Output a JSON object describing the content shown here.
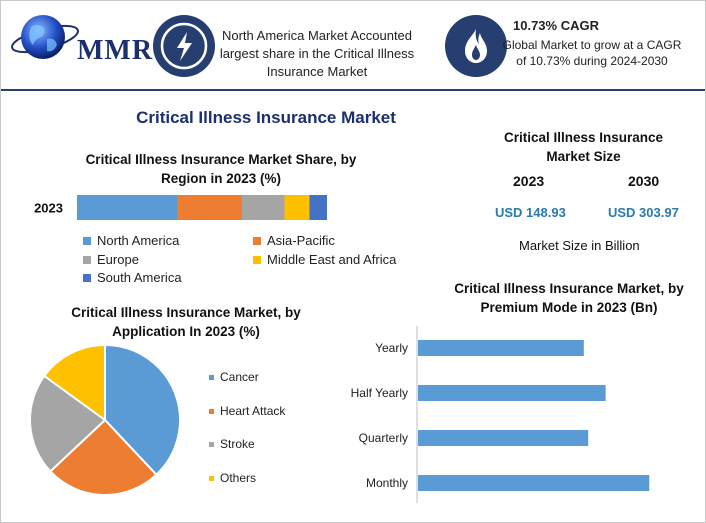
{
  "header": {
    "logo_text": "MMR",
    "headline": "North America Market Accounted largest share in the Critical Illness Insurance Market",
    "cagr_title": "10.73% CAGR",
    "cagr_text": "Global Market to grow at a CAGR of 10.73% during 2024-2030",
    "icons": [
      "globe-icon",
      "lightning-icon",
      "flame-icon"
    ]
  },
  "main_title": "Critical Illness Insurance Market",
  "market_size": {
    "title": "Critical Illness Insurance Market Size",
    "year_start": "2023",
    "year_end": "2030",
    "value_start": "USD 148.93",
    "value_end": "USD 303.97",
    "unit_note": "Market Size in Billion"
  },
  "colors": {
    "navy": "#263f70",
    "blue": "#5b9bd5",
    "orange": "#ed7d31",
    "gray": "#a5a5a5",
    "yellow": "#ffc000",
    "darkblue": "#4472c4",
    "value_blue": "#2a7ab0"
  },
  "chart_data": [
    {
      "type": "bar",
      "orientation": "horizontal-stacked",
      "title": "Critical Illness Insurance Market Share, by Region in 2023 (%)",
      "categories": [
        "2023"
      ],
      "series": [
        {
          "name": "North America",
          "values": [
            40
          ],
          "color": "#5b9bd5"
        },
        {
          "name": "Asia-Pacific",
          "values": [
            26
          ],
          "color": "#ed7d31"
        },
        {
          "name": "Europe",
          "values": [
            17
          ],
          "color": "#a5a5a5"
        },
        {
          "name": "Middle East and Africa",
          "values": [
            10
          ],
          "color": "#ffc000"
        },
        {
          "name": "South America",
          "values": [
            7
          ],
          "color": "#4472c4"
        }
      ],
      "legend": "bottom"
    },
    {
      "type": "pie",
      "title": "Critical Illness Insurance Market, by Application In 2023 (%)",
      "labels": [
        "Cancer",
        "Heart Attack",
        "Stroke",
        "Others"
      ],
      "values": [
        38,
        25,
        22,
        15
      ],
      "colors": [
        "#5b9bd5",
        "#ed7d31",
        "#a5a5a5",
        "#ffc000"
      ],
      "legend": "right"
    },
    {
      "type": "bar",
      "orientation": "horizontal",
      "title": "Critical Illness Insurance Market, by Premium Mode in 2023 (Bn)",
      "categories": [
        "Yearly",
        "Half Yearly",
        "Quarterly",
        "Monthly"
      ],
      "values": [
        38,
        43,
        39,
        53
      ],
      "xlim": [
        0,
        55
      ],
      "color": "#5b9bd5",
      "grid": false
    }
  ]
}
